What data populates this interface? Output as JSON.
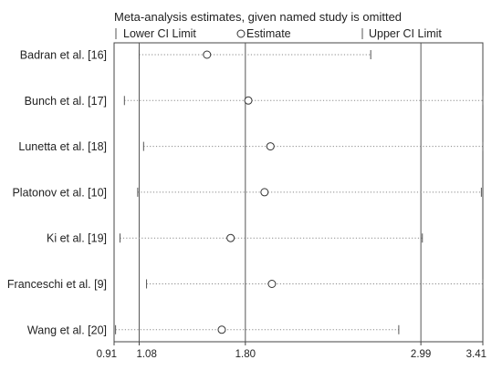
{
  "chart_data": {
    "type": "forest-sensitivity",
    "title": "Meta-analysis estimates, given named study is omitted",
    "legend": {
      "lower": "Lower CI Limit",
      "estimate": "Estimate",
      "upper": "Upper CI Limit"
    },
    "xlim": [
      0.91,
      3.41
    ],
    "x_ticks": [
      {
        "value": 0.91,
        "label": "0.91"
      },
      {
        "value": 1.08,
        "label": "1.08"
      },
      {
        "value": 1.8,
        "label": "1.80"
      },
      {
        "value": 2.99,
        "label": "2.99"
      },
      {
        "value": 3.41,
        "label": "3.41"
      }
    ],
    "reference_lines": [
      1.08,
      1.8,
      2.99
    ],
    "studies": [
      {
        "name": "Badran et al. [16]",
        "lower": 1.08,
        "estimate": 1.54,
        "upper": 2.65
      },
      {
        "name": "Bunch et al. [17]",
        "lower": 0.98,
        "estimate": 1.82,
        "upper": 3.41
      },
      {
        "name": "Lunetta et al. [18]",
        "lower": 1.11,
        "estimate": 1.97,
        "upper": 3.41
      },
      {
        "name": "Platonov et al. [10]",
        "lower": 1.07,
        "estimate": 1.93,
        "upper": 3.4
      },
      {
        "name": "Ki et al. [19]",
        "lower": 0.95,
        "estimate": 1.7,
        "upper": 3.0
      },
      {
        "name": "Franceschi et al. [9]",
        "lower": 1.13,
        "estimate": 1.98,
        "upper": 3.41
      },
      {
        "name": "Wang et al. [20]",
        "lower": 0.92,
        "estimate": 1.64,
        "upper": 2.84
      }
    ]
  }
}
